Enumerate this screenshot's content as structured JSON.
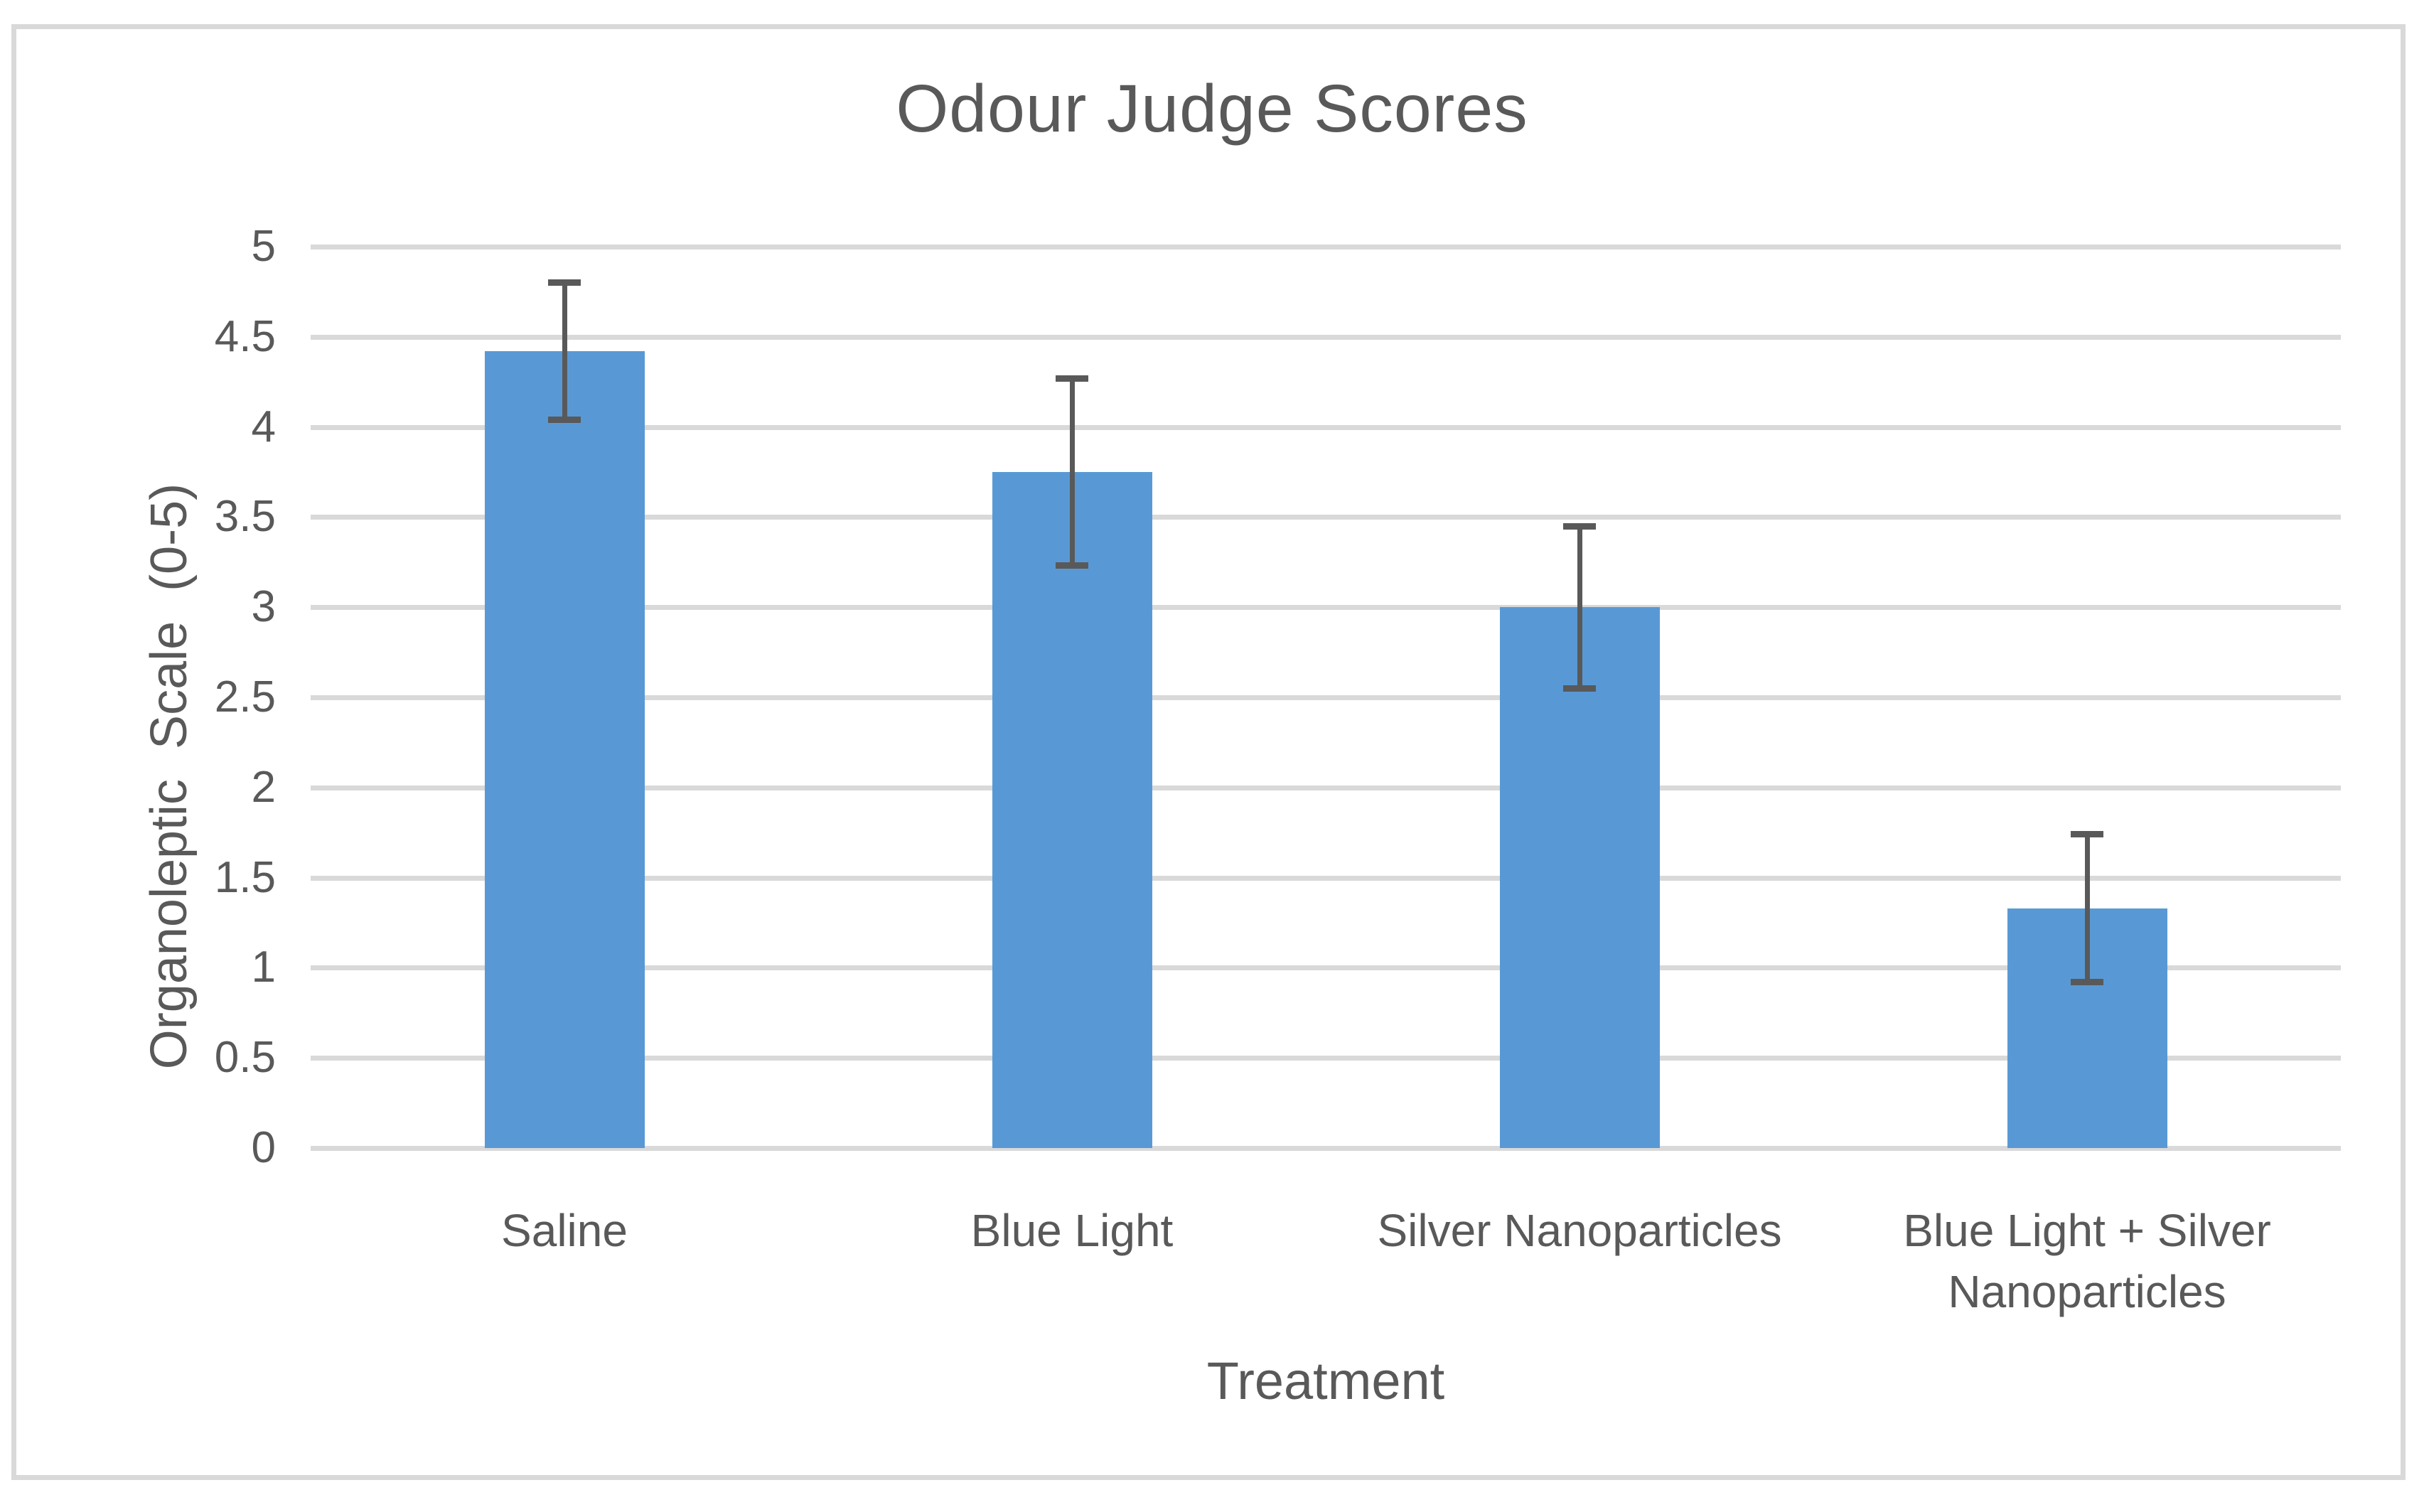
{
  "chart_data": {
    "type": "bar",
    "title": "Odour Judge Scores",
    "xlabel": "Treatment",
    "ylabel": "Organoleptic Scale (0-5)",
    "categories": [
      "Saline",
      "Blue Light",
      "Silver Nanoparticles",
      "Blue Light + Silver Nanoparticles"
    ],
    "values": [
      4.42,
      3.75,
      3.0,
      1.33
    ],
    "error_bars": [
      0.38,
      0.52,
      0.45,
      0.41
    ],
    "ylim": [
      0,
      5
    ],
    "ytick_step": 0.5,
    "ytick_labels": [
      "5",
      "4.5",
      "4",
      "3.5",
      "3",
      "2.5",
      "2",
      "1.5",
      "1",
      "0.5",
      "0"
    ],
    "grid": "horizontal",
    "legend_position": "none",
    "colors": {
      "bar": "#5899D5",
      "error_bar": "#595959",
      "gridline": "#D9D9D9",
      "text": "#595959",
      "frame_border": "#D9D9D9",
      "background": "#FFFFFF"
    }
  }
}
